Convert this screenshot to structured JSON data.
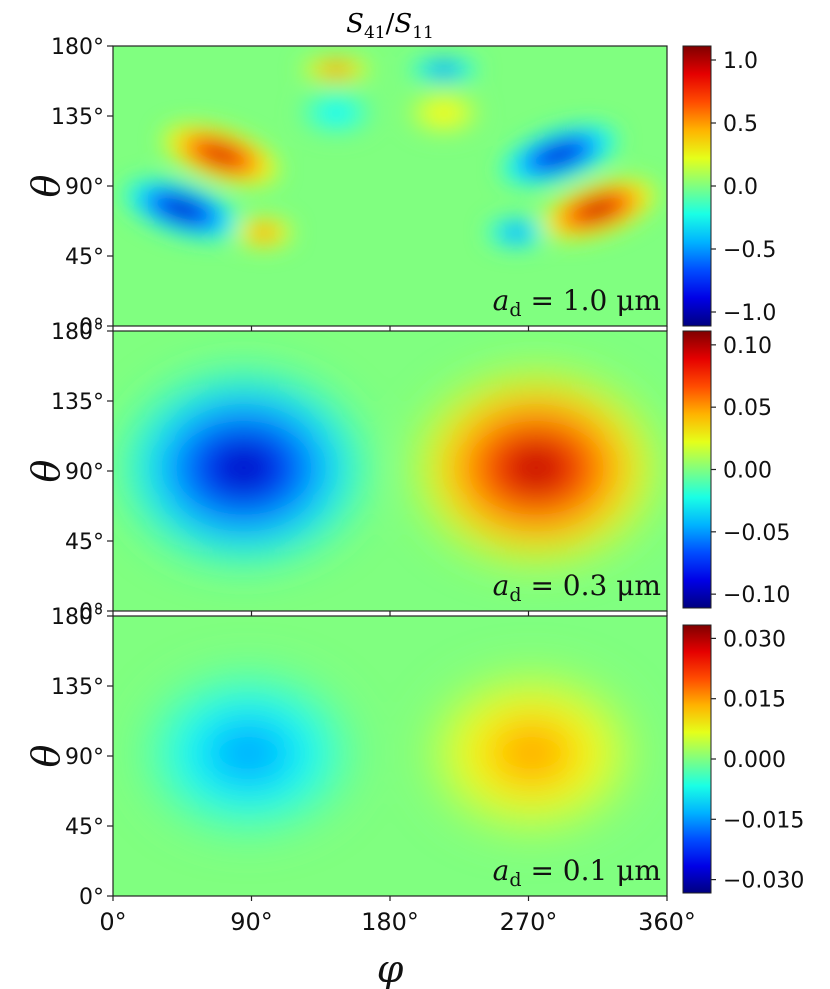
{
  "title_parts": {
    "a": "S",
    "a_sub": "41",
    "slash": "/",
    "b": "S",
    "b_sub": "11"
  },
  "xlabel": "φ",
  "x_ticks": [
    "0°",
    "90°",
    "180°",
    "270°",
    "360°"
  ],
  "y_ticks": [
    "0°",
    "45°",
    "90°",
    "135°",
    "180°"
  ],
  "chart_data": [
    {
      "type": "heatmap",
      "panel": "top",
      "ylabel": "θ",
      "xlim": [
        0,
        360
      ],
      "ylim": [
        0,
        180
      ],
      "annotation": {
        "var": "a",
        "sub": "d",
        "text": " = 1.0 μm"
      },
      "colorbar": {
        "colormap": "jet",
        "range": [
          -1.0,
          1.0
        ],
        "ticks": [
          "1.0",
          "0.5",
          "0.0",
          "−0.5",
          "−1.0"
        ]
      },
      "background": 0.0,
      "features": [
        {
          "phi": 70,
          "theta": 110,
          "value": 0.95
        },
        {
          "phi": 290,
          "theta": 110,
          "value": -0.95
        },
        {
          "phi": 45,
          "theta": 75,
          "value": -1.0
        },
        {
          "phi": 315,
          "theta": 75,
          "value": 1.0
        },
        {
          "phi": 98,
          "theta": 60,
          "value": 0.6
        },
        {
          "phi": 262,
          "theta": 60,
          "value": -0.6
        },
        {
          "phi": 145,
          "theta": 165,
          "value": 0.65
        },
        {
          "phi": 215,
          "theta": 165,
          "value": -0.65
        },
        {
          "phi": 145,
          "theta": 137,
          "value": -0.3
        },
        {
          "phi": 215,
          "theta": 137,
          "value": 0.3
        }
      ]
    },
    {
      "type": "heatmap",
      "panel": "middle",
      "ylabel": "θ",
      "xlim": [
        0,
        360
      ],
      "ylim": [
        0,
        180
      ],
      "annotation": {
        "var": "a",
        "sub": "d",
        "text": " = 0.3 μm"
      },
      "colorbar": {
        "colormap": "jet",
        "range": [
          -0.1,
          0.1
        ],
        "ticks": [
          "0.10",
          "0.05",
          "0.00",
          "−0.05",
          "−0.10"
        ]
      },
      "background": 0.0,
      "features": [
        {
          "phi": 85,
          "theta": 92,
          "value": -0.1
        },
        {
          "phi": 275,
          "theta": 92,
          "value": 0.1
        }
      ]
    },
    {
      "type": "heatmap",
      "panel": "bottom",
      "ylabel": "θ",
      "xlim": [
        0,
        360
      ],
      "ylim": [
        0,
        180
      ],
      "annotation": {
        "var": "a",
        "sub": "d",
        "text": " = 0.1 μm"
      },
      "colorbar": {
        "colormap": "jet",
        "range": [
          -0.03,
          0.03
        ],
        "ticks": [
          "0.030",
          "0.015",
          "0.000",
          "−0.015",
          "−0.030"
        ]
      },
      "background": 0.0,
      "features": [
        {
          "phi": 88,
          "theta": 92,
          "value": -0.015
        },
        {
          "phi": 272,
          "theta": 92,
          "value": 0.015
        }
      ]
    }
  ]
}
